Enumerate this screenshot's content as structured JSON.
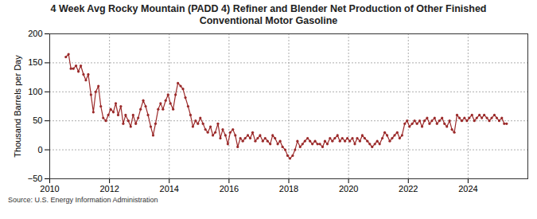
{
  "chart_data": {
    "type": "line",
    "title": "4 Week Avg Rocky Mountain (PADD 4) Refiner and Blender Net Production of Other Finished Conventional Motor Gasoline",
    "y_label": "Thousand Barrels per Day",
    "source": "Source: U.S. Energy Information Administration",
    "x": [
      2010.54,
      2010.63,
      2010.71,
      2010.79,
      2010.88,
      2010.96,
      2011.04,
      2011.13,
      2011.21,
      2011.29,
      2011.38,
      2011.46,
      2011.54,
      2011.63,
      2011.71,
      2011.79,
      2011.88,
      2011.96,
      2012.04,
      2012.13,
      2012.21,
      2012.29,
      2012.38,
      2012.46,
      2012.54,
      2012.63,
      2012.71,
      2012.79,
      2012.88,
      2012.96,
      2013.04,
      2013.13,
      2013.21,
      2013.29,
      2013.38,
      2013.46,
      2013.54,
      2013.63,
      2013.71,
      2013.79,
      2013.88,
      2013.96,
      2014.04,
      2014.13,
      2014.21,
      2014.29,
      2014.38,
      2014.46,
      2014.54,
      2014.63,
      2014.71,
      2014.79,
      2014.88,
      2014.96,
      2015.04,
      2015.13,
      2015.21,
      2015.29,
      2015.38,
      2015.46,
      2015.54,
      2015.63,
      2015.71,
      2015.79,
      2015.88,
      2015.96,
      2016.04,
      2016.13,
      2016.21,
      2016.29,
      2016.38,
      2016.46,
      2016.54,
      2016.63,
      2016.71,
      2016.79,
      2016.88,
      2016.96,
      2017.04,
      2017.13,
      2017.21,
      2017.29,
      2017.38,
      2017.46,
      2017.54,
      2017.63,
      2017.71,
      2017.79,
      2017.88,
      2017.96,
      2018.04,
      2018.13,
      2018.21,
      2018.29,
      2018.38,
      2018.46,
      2018.54,
      2018.63,
      2018.71,
      2018.79,
      2018.88,
      2018.96,
      2019.04,
      2019.13,
      2019.21,
      2019.29,
      2019.38,
      2019.46,
      2019.54,
      2019.63,
      2019.71,
      2019.79,
      2019.88,
      2019.96,
      2020.04,
      2020.13,
      2020.21,
      2020.29,
      2020.38,
      2020.46,
      2020.54,
      2020.63,
      2020.71,
      2020.79,
      2020.88,
      2020.96,
      2021.04,
      2021.13,
      2021.21,
      2021.29,
      2021.38,
      2021.46,
      2021.54,
      2021.63,
      2021.71,
      2021.79,
      2021.88,
      2021.96,
      2022.04,
      2022.13,
      2022.21,
      2022.29,
      2022.38,
      2022.46,
      2022.54,
      2022.63,
      2022.71,
      2022.79,
      2022.88,
      2022.96,
      2023.04,
      2023.13,
      2023.21,
      2023.29,
      2023.38,
      2023.46,
      2023.54,
      2023.63,
      2023.71,
      2023.79,
      2023.88,
      2023.96,
      2024.04,
      2024.13,
      2024.21,
      2024.29,
      2024.38,
      2024.46,
      2024.54,
      2024.63,
      2024.71,
      2024.79,
      2024.88,
      2024.96,
      2025.04,
      2025.13,
      2025.21,
      2025.29
    ],
    "values": [
      160,
      165,
      140,
      140,
      145,
      135,
      145,
      130,
      120,
      130,
      95,
      65,
      100,
      110,
      75,
      55,
      50,
      60,
      70,
      65,
      80,
      60,
      75,
      45,
      60,
      50,
      40,
      60,
      45,
      55,
      70,
      85,
      75,
      60,
      40,
      25,
      45,
      70,
      80,
      70,
      85,
      95,
      80,
      70,
      95,
      115,
      110,
      105,
      90,
      75,
      60,
      40,
      50,
      45,
      55,
      45,
      35,
      30,
      40,
      25,
      30,
      45,
      20,
      35,
      25,
      10,
      30,
      35,
      25,
      5,
      20,
      15,
      20,
      25,
      20,
      30,
      15,
      20,
      25,
      15,
      20,
      15,
      10,
      25,
      20,
      10,
      15,
      5,
      0,
      -10,
      -15,
      -10,
      0,
      15,
      5,
      10,
      15,
      20,
      15,
      10,
      15,
      10,
      10,
      5,
      15,
      10,
      20,
      15,
      20,
      25,
      15,
      20,
      15,
      20,
      15,
      20,
      10,
      20,
      15,
      25,
      20,
      15,
      10,
      5,
      10,
      15,
      10,
      20,
      30,
      25,
      15,
      20,
      25,
      30,
      20,
      25,
      45,
      50,
      40,
      45,
      50,
      45,
      50,
      40,
      50,
      55,
      45,
      50,
      55,
      45,
      50,
      55,
      45,
      40,
      50,
      35,
      30,
      60,
      55,
      50,
      55,
      50,
      55,
      60,
      50,
      55,
      60,
      55,
      60,
      55,
      50,
      55,
      60,
      55,
      50,
      55,
      45,
      45
    ],
    "color": "#9b2a2a",
    "marker": "circle",
    "xlim": [
      2010,
      2026
    ],
    "xticks": [
      2010,
      2012,
      2014,
      2016,
      2018,
      2020,
      2022,
      2024
    ],
    "ylim": [
      -50,
      200
    ],
    "yticks": [
      -50,
      0,
      50,
      100,
      150,
      200
    ],
    "grid": true
  }
}
